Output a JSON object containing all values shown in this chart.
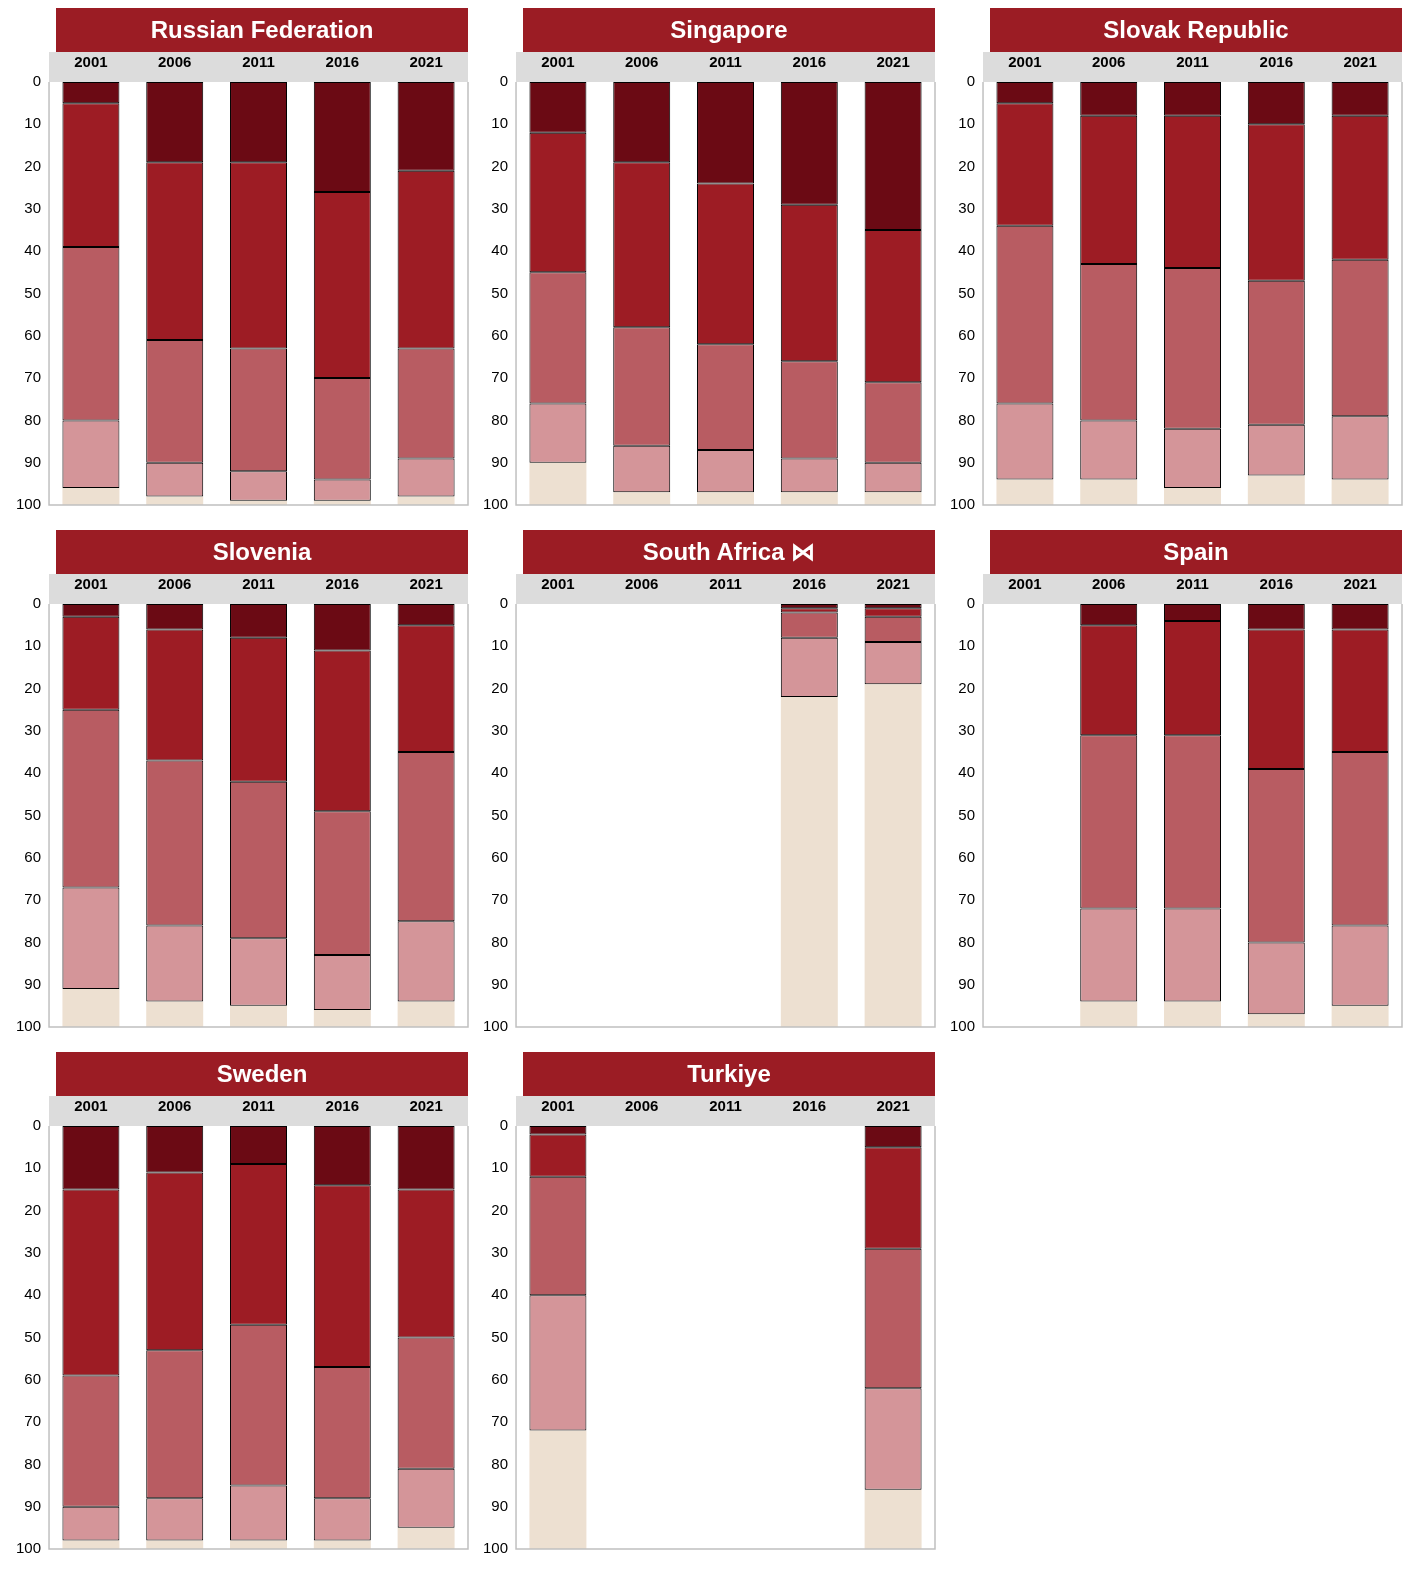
{
  "chart_data": [
    {
      "type": "bar",
      "title": "Russian Federation",
      "categories": [
        "2001",
        "2006",
        "2011",
        "2016",
        "2021"
      ],
      "stacked": true,
      "ylim": [
        100,
        0
      ],
      "yticks": [
        0,
        10,
        20,
        30,
        40,
        50,
        60,
        70,
        80,
        90,
        100
      ],
      "series": [
        {
          "color": "#6b0a14",
          "values": [
            5,
            19,
            19,
            26,
            21
          ]
        },
        {
          "color": "#9d1c24",
          "values": [
            34,
            42,
            44,
            44,
            42
          ]
        },
        {
          "color": "#b85c62",
          "values": [
            41,
            29,
            29,
            24,
            26
          ]
        },
        {
          "color": "#d49599",
          "values": [
            16,
            8,
            7,
            5,
            9
          ]
        },
        {
          "color": "#ede0d1",
          "values": [
            4,
            2,
            1,
            1,
            2
          ]
        }
      ]
    },
    {
      "type": "bar",
      "title": "Singapore",
      "categories": [
        "2001",
        "2006",
        "2011",
        "2016",
        "2021"
      ],
      "stacked": true,
      "ylim": [
        100,
        0
      ],
      "yticks": [
        0,
        10,
        20,
        30,
        40,
        50,
        60,
        70,
        80,
        90,
        100
      ],
      "series": [
        {
          "color": "#6b0a14",
          "values": [
            12,
            19,
            24,
            29,
            35
          ]
        },
        {
          "color": "#9d1c24",
          "values": [
            33,
            39,
            38,
            37,
            36
          ]
        },
        {
          "color": "#b85c62",
          "values": [
            31,
            28,
            25,
            23,
            19
          ]
        },
        {
          "color": "#d49599",
          "values": [
            14,
            11,
            10,
            8,
            7
          ]
        },
        {
          "color": "#ede0d1",
          "values": [
            10,
            3,
            3,
            3,
            3
          ]
        }
      ]
    },
    {
      "type": "bar",
      "title": "Slovak Republic",
      "categories": [
        "2001",
        "2006",
        "2011",
        "2016",
        "2021"
      ],
      "stacked": true,
      "ylim": [
        100,
        0
      ],
      "yticks": [
        0,
        10,
        20,
        30,
        40,
        50,
        60,
        70,
        80,
        90,
        100
      ],
      "series": [
        {
          "color": "#6b0a14",
          "values": [
            5,
            8,
            8,
            10,
            8
          ]
        },
        {
          "color": "#9d1c24",
          "values": [
            29,
            35,
            36,
            37,
            34
          ]
        },
        {
          "color": "#b85c62",
          "values": [
            42,
            37,
            38,
            34,
            37
          ]
        },
        {
          "color": "#d49599",
          "values": [
            18,
            14,
            14,
            12,
            15
          ]
        },
        {
          "color": "#ede0d1",
          "values": [
            6,
            6,
            4,
            7,
            6
          ]
        }
      ]
    },
    {
      "type": "bar",
      "title": "Slovenia",
      "categories": [
        "2001",
        "2006",
        "2011",
        "2016",
        "2021"
      ],
      "stacked": true,
      "ylim": [
        100,
        0
      ],
      "yticks": [
        0,
        10,
        20,
        30,
        40,
        50,
        60,
        70,
        80,
        90,
        100
      ],
      "series": [
        {
          "color": "#6b0a14",
          "values": [
            3,
            6,
            8,
            11,
            5
          ]
        },
        {
          "color": "#9d1c24",
          "values": [
            22,
            31,
            34,
            38,
            30
          ]
        },
        {
          "color": "#b85c62",
          "values": [
            42,
            39,
            37,
            34,
            40
          ]
        },
        {
          "color": "#d49599",
          "values": [
            24,
            18,
            16,
            13,
            19
          ]
        },
        {
          "color": "#ede0d1",
          "values": [
            9,
            6,
            5,
            4,
            6
          ]
        }
      ]
    },
    {
      "type": "bar",
      "title": "South Africa ⋈",
      "categories": [
        "2001",
        "2006",
        "2011",
        "2016",
        "2021"
      ],
      "stacked": true,
      "ylim": [
        100,
        0
      ],
      "yticks": [
        0,
        10,
        20,
        30,
        40,
        50,
        60,
        70,
        80,
        90,
        100
      ],
      "series": [
        {
          "color": "#6b0a14",
          "values": [
            null,
            null,
            null,
            1,
            1
          ]
        },
        {
          "color": "#9d1c24",
          "values": [
            null,
            null,
            null,
            1,
            2
          ]
        },
        {
          "color": "#b85c62",
          "values": [
            null,
            null,
            null,
            6,
            6
          ]
        },
        {
          "color": "#d49599",
          "values": [
            null,
            null,
            null,
            14,
            10
          ]
        },
        {
          "color": "#ede0d1",
          "values": [
            null,
            null,
            null,
            78,
            81
          ]
        }
      ]
    },
    {
      "type": "bar",
      "title": "Spain",
      "categories": [
        "2001",
        "2006",
        "2011",
        "2016",
        "2021"
      ],
      "stacked": true,
      "ylim": [
        100,
        0
      ],
      "yticks": [
        0,
        10,
        20,
        30,
        40,
        50,
        60,
        70,
        80,
        90,
        100
      ],
      "series": [
        {
          "color": "#6b0a14",
          "values": [
            null,
            5,
            4,
            6,
            6
          ]
        },
        {
          "color": "#9d1c24",
          "values": [
            null,
            26,
            27,
            33,
            29
          ]
        },
        {
          "color": "#b85c62",
          "values": [
            null,
            41,
            41,
            41,
            41
          ]
        },
        {
          "color": "#d49599",
          "values": [
            null,
            22,
            22,
            17,
            19
          ]
        },
        {
          "color": "#ede0d1",
          "values": [
            null,
            6,
            6,
            3,
            5
          ]
        }
      ]
    },
    {
      "type": "bar",
      "title": "Sweden",
      "categories": [
        "2001",
        "2006",
        "2011",
        "2016",
        "2021"
      ],
      "stacked": true,
      "ylim": [
        100,
        0
      ],
      "yticks": [
        0,
        10,
        20,
        30,
        40,
        50,
        60,
        70,
        80,
        90,
        100
      ],
      "series": [
        {
          "color": "#6b0a14",
          "values": [
            15,
            11,
            9,
            14,
            15
          ]
        },
        {
          "color": "#9d1c24",
          "values": [
            44,
            42,
            38,
            43,
            35
          ]
        },
        {
          "color": "#b85c62",
          "values": [
            31,
            35,
            38,
            31,
            31
          ]
        },
        {
          "color": "#d49599",
          "values": [
            8,
            10,
            13,
            10,
            14
          ]
        },
        {
          "color": "#ede0d1",
          "values": [
            2,
            2,
            2,
            2,
            5
          ]
        }
      ]
    },
    {
      "type": "bar",
      "title": "Turkiye",
      "categories": [
        "2001",
        "2006",
        "2011",
        "2016",
        "2021"
      ],
      "stacked": true,
      "ylim": [
        100,
        0
      ],
      "yticks": [
        0,
        10,
        20,
        30,
        40,
        50,
        60,
        70,
        80,
        90,
        100
      ],
      "series": [
        {
          "color": "#6b0a14",
          "values": [
            2,
            null,
            null,
            null,
            5
          ]
        },
        {
          "color": "#9d1c24",
          "values": [
            10,
            null,
            null,
            null,
            24
          ]
        },
        {
          "color": "#b85c62",
          "values": [
            28,
            null,
            null,
            null,
            33
          ]
        },
        {
          "color": "#d49599",
          "values": [
            32,
            null,
            null,
            null,
            24
          ]
        },
        {
          "color": "#ede0d1",
          "values": [
            28,
            null,
            null,
            null,
            14
          ]
        }
      ]
    }
  ]
}
